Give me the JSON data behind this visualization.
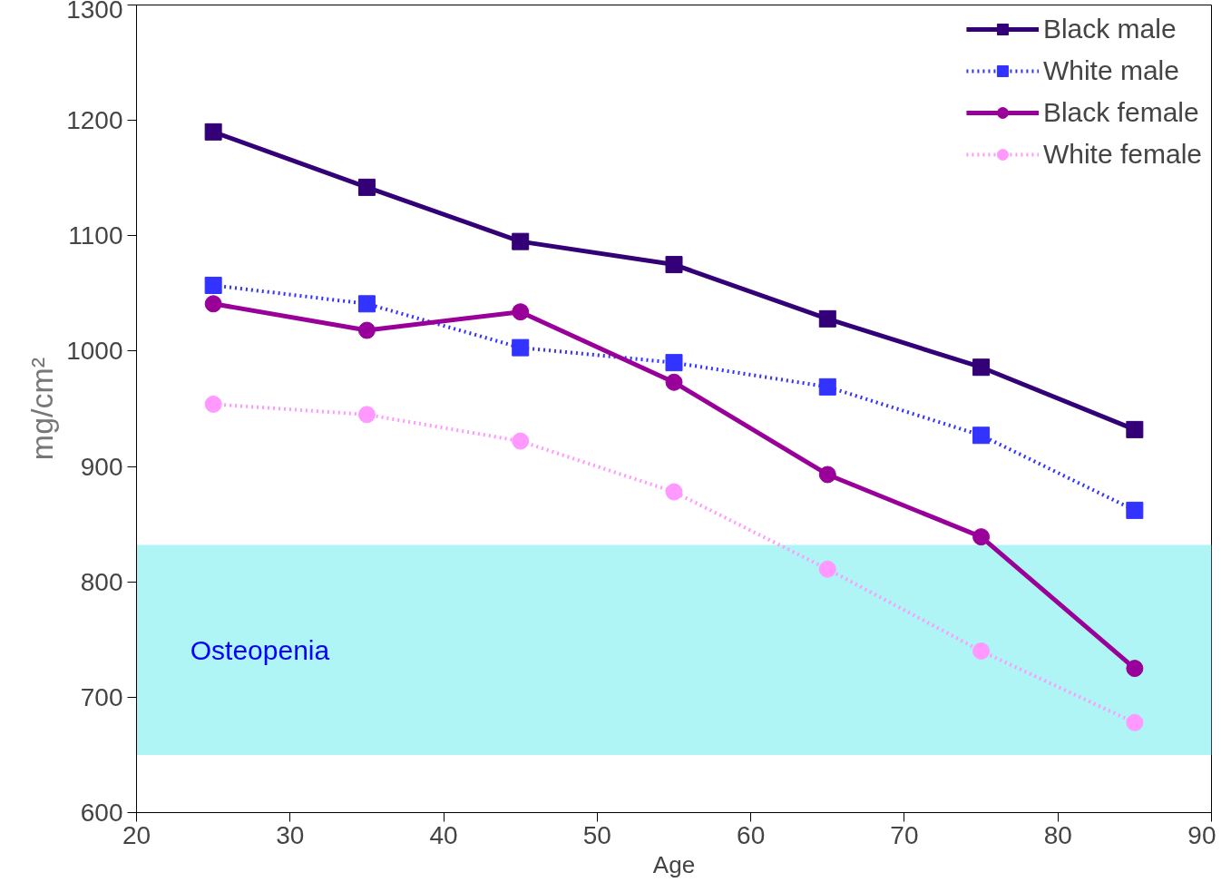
{
  "chart_data": {
    "type": "line",
    "xlabel": "Age",
    "ylabel": "mg/cm²",
    "x": [
      25,
      35,
      45,
      55,
      65,
      75,
      85
    ],
    "xlim": [
      20,
      90
    ],
    "xticks": [
      20,
      30,
      40,
      50,
      60,
      70,
      80,
      90
    ],
    "ylim": [
      600,
      1300
    ],
    "yticks": [
      600,
      700,
      800,
      900,
      1000,
      1100,
      1200,
      1300
    ],
    "grid": false,
    "legend": "top right",
    "series": [
      {
        "name": "Black male",
        "color": "#330077",
        "values": [
          1190,
          1142,
          1095,
          1075,
          1028,
          986,
          932
        ],
        "marker": "square",
        "line_style": "solid"
      },
      {
        "name": "White male",
        "color": "#3333ff",
        "values": [
          1057,
          1041,
          1003,
          990,
          969,
          927,
          862
        ],
        "marker": "square",
        "line_style": "dotted"
      },
      {
        "name": "Black female",
        "color": "#990099",
        "values": [
          1041,
          1018,
          1034,
          973,
          893,
          839,
          725
        ],
        "marker": "circle",
        "line_style": "solid"
      },
      {
        "name": "White female",
        "color": "#ff99ff",
        "values": [
          954,
          945,
          922,
          878,
          811,
          740,
          678
        ],
        "marker": "circle",
        "line_style": "dotted"
      }
    ],
    "bands": [
      {
        "axis": "y",
        "from": 650,
        "to": 832,
        "label": "Osteopenia",
        "color": "#b0f5f5"
      }
    ]
  }
}
